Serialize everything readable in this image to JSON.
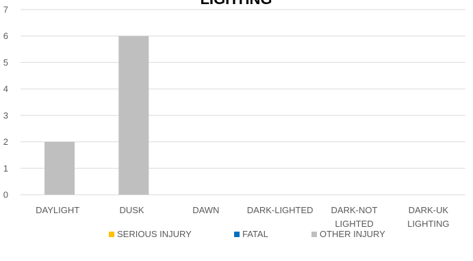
{
  "chart_data": {
    "type": "bar",
    "title": "LIGHTING",
    "categories": [
      [
        "DAYLIGHT"
      ],
      [
        "DUSK"
      ],
      [
        "DAWN"
      ],
      [
        "DARK-LIGHTED"
      ],
      [
        "DARK-NOT",
        "LIGHTED"
      ],
      [
        "DARK-UK",
        "LIGHTING"
      ]
    ],
    "series": [
      {
        "name": "SERIOUS INJURY",
        "color": "#FFC000",
        "values": [
          0,
          0,
          0,
          0,
          0,
          0
        ]
      },
      {
        "name": "FATAL",
        "color": "#0070C0",
        "values": [
          0,
          0,
          0,
          0,
          0,
          0
        ]
      },
      {
        "name": "OTHER INJURY",
        "color": "#BFBFBF",
        "values": [
          2,
          6,
          0,
          0,
          0,
          0
        ]
      }
    ],
    "ylim": [
      0,
      7
    ],
    "yticks": [
      0,
      1,
      2,
      3,
      4,
      5,
      6,
      7
    ],
    "grid": true,
    "legend_position": "bottom"
  }
}
